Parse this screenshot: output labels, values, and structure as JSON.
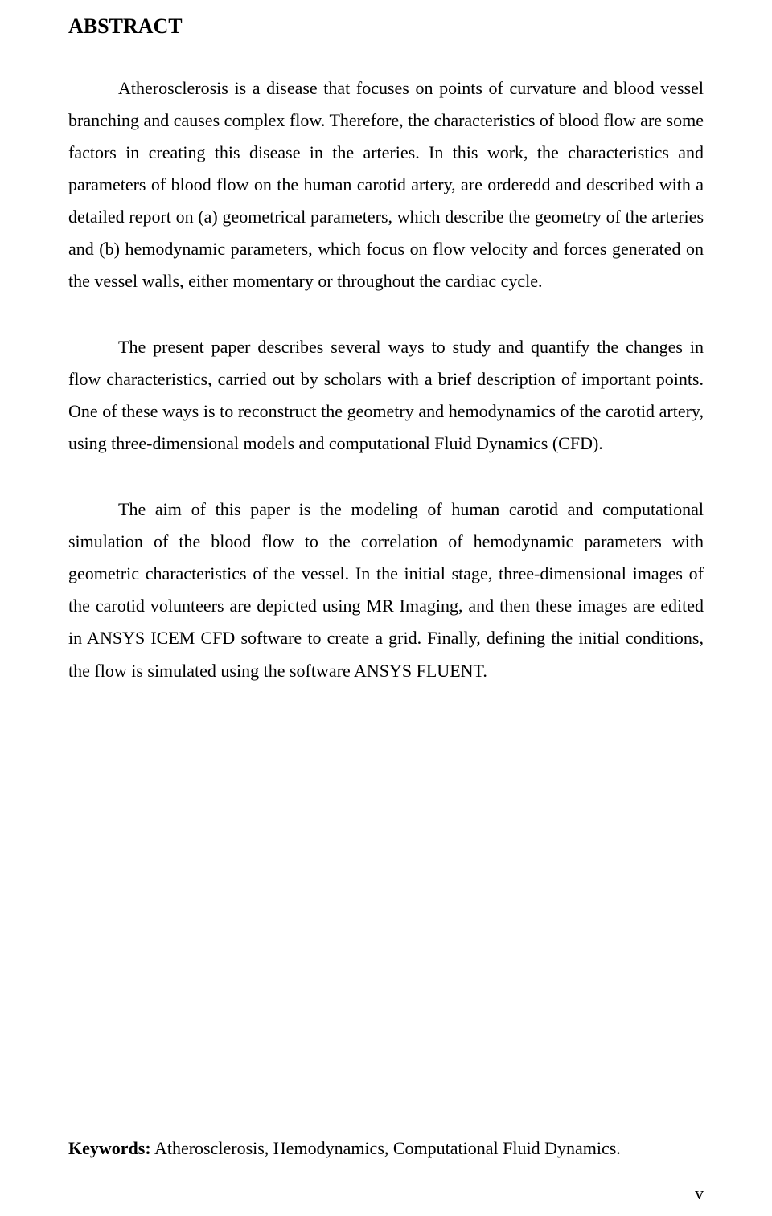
{
  "title": "ABSTRACT",
  "paragraphs": {
    "p1": "Atherosclerosis is a disease that focuses on points of curvature and blood vessel branching and causes complex flow. Therefore, the characteristics of blood flow are some factors in creating this disease in the arteries. In this work, the characteristics and parameters of blood flow on the human carotid artery, are orderedd and described with a detailed report on (a) geometrical parameters, which describe the geometry of the arteries and (b) hemodynamic parameters, which focus on flow velocity and forces generated on the vessel walls, either momentary or throughout the cardiac cycle.",
    "p2": "The present paper describes several ways to study and quantify the changes in flow characteristics, carried out by scholars with a brief description of important points. One of these ways is to reconstruct the geometry and hemodynamics of the carotid artery, using three-dimensional models and computational Fluid Dynamics (CFD).",
    "p3": "The aim of this paper is the modeling of human carotid and computational simulation of the blood flow to the correlation of hemodynamic parameters with geometric characteristics of the vessel. In the initial stage, three-dimensional images of the carotid volunteers are depicted using MR Imaging, and then these images are edited in ANSYS ICEM CFD software to create a grid. Finally, defining the initial conditions, the flow is simulated using the software ANSYS FLUENT."
  },
  "keywords_label": "Keywords:",
  "keywords_value": " Atherosclerosis, Hemodynamics, Computational Fluid Dynamics.",
  "page_number": "v"
}
